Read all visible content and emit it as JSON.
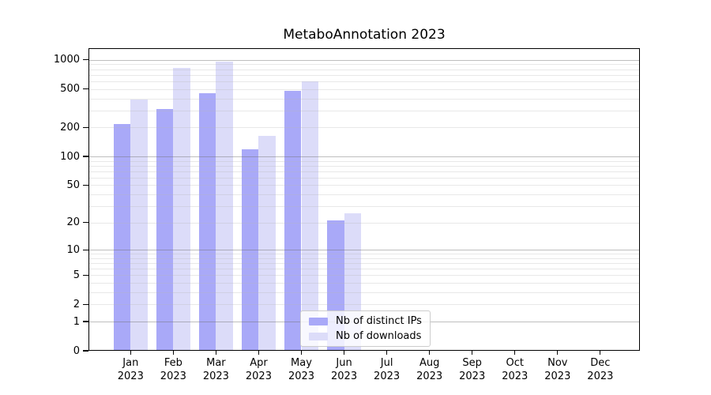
{
  "chart_data": {
    "type": "bar",
    "title": "MetaboAnnotation 2023",
    "categories": [
      "Jan 2023",
      "Feb 2023",
      "Mar 2023",
      "Apr 2023",
      "May 2023",
      "Jun 2023",
      "Jul 2023",
      "Aug 2023",
      "Sep 2023",
      "Oct 2023",
      "Nov 2023",
      "Dec 2023"
    ],
    "series": [
      {
        "name": "Nb of distinct IPs",
        "color": "#a9a9f8",
        "values": [
          215,
          312,
          455,
          118,
          480,
          21,
          0,
          0,
          0,
          0,
          0,
          0
        ]
      },
      {
        "name": "Nb of downloads",
        "color": "#dcdcf9",
        "values": [
          390,
          820,
          950,
          165,
          605,
          25,
          0,
          0,
          0,
          0,
          0,
          0
        ]
      }
    ],
    "xlabel": "",
    "ylabel": "",
    "yscale": "symlog (log(1+v))",
    "yticks": [
      0,
      1,
      2,
      5,
      10,
      20,
      50,
      100,
      200,
      500,
      1000
    ],
    "ylim": [
      0,
      1320
    ],
    "grid": true,
    "legend_position": "lower center",
    "colors": {
      "major_grid": "rgba(110,110,110,0.45)",
      "minor_grid": "rgba(185,185,185,0.32)",
      "axis": "#000000",
      "background": "#ffffff"
    }
  }
}
